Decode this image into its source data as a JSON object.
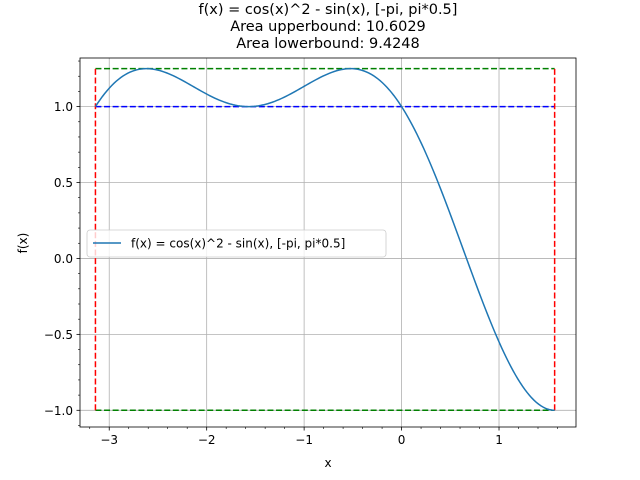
{
  "chart_data": {
    "type": "line",
    "title_lines": [
      "f(x) = cos(x)^2 - sin(x), [-pi, pi*0.5]",
      "Area upperbound: 10.6029",
      "Area lowerbound: 9.4248"
    ],
    "xlabel": "x",
    "ylabel": "f(x)",
    "xlim": [
      -3.3,
      1.79
    ],
    "ylim": [
      -1.11,
      1.32
    ],
    "x_ticks": [
      -3,
      -2,
      -1,
      0,
      1
    ],
    "x_tick_labels": [
      "−3",
      "−2",
      "−1",
      "0",
      "1"
    ],
    "y_ticks": [
      -1.0,
      -0.5,
      0.0,
      0.5,
      1.0
    ],
    "y_tick_labels": [
      "−1.0",
      "−0.5",
      "0.0",
      "0.5",
      "1.0"
    ],
    "x_minor_step": 0.2,
    "y_minor_step": 0.1,
    "grid": true,
    "legend_position": "center-left",
    "series": [
      {
        "name": "f(x) = cos(x)^2 - sin(x), [-pi, pi*0.5]",
        "color": "#1f77b4",
        "function": "cos(x)^2 - sin(x)",
        "domain": [
          -3.14159,
          1.5708
        ],
        "samples": 200
      }
    ],
    "reference_lines": [
      {
        "kind": "hline",
        "y": 1.25,
        "x_range": [
          -3.14159,
          1.5708
        ],
        "color": "#008000",
        "style": "dashed"
      },
      {
        "kind": "hline",
        "y": -1.0,
        "x_range": [
          -3.14159,
          1.5708
        ],
        "color": "#008000",
        "style": "dashed"
      },
      {
        "kind": "hline",
        "y": 1.0,
        "x_range": [
          -3.14159,
          1.5708
        ],
        "color": "#0000ff",
        "style": "dashed"
      },
      {
        "kind": "vline",
        "x": -3.14159,
        "y_range": [
          -1.0,
          1.25
        ],
        "color": "#ff0000",
        "style": "dashed"
      },
      {
        "kind": "vline",
        "x": 1.5708,
        "y_range": [
          -1.0,
          1.25
        ],
        "color": "#ff0000",
        "style": "dashed"
      }
    ]
  }
}
